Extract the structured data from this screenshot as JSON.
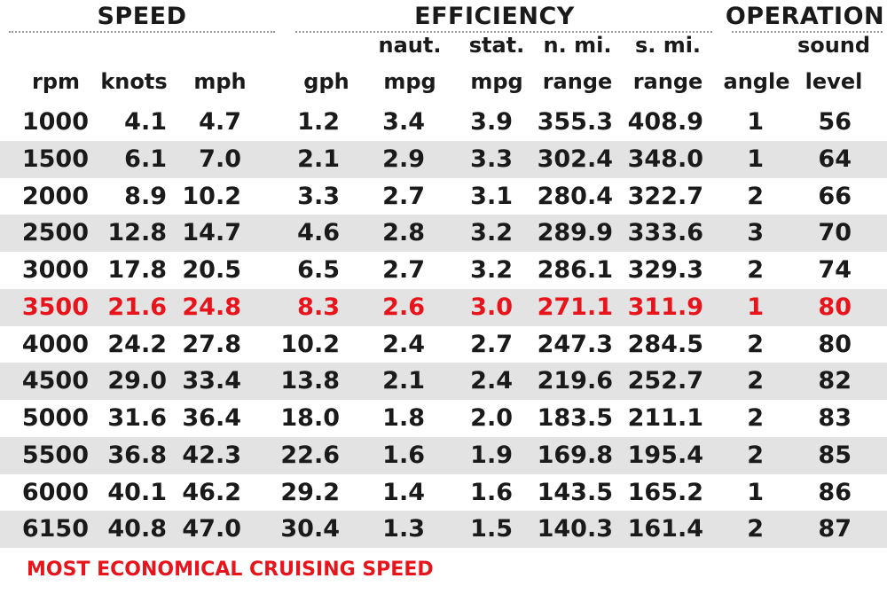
{
  "groups": {
    "speed": "SPEED",
    "efficiency": "EFFICIENCY",
    "operation": "OPERATION"
  },
  "columns": [
    {
      "key": "rpm",
      "line1": "",
      "line2": "rpm"
    },
    {
      "key": "knots",
      "line1": "",
      "line2": "knots"
    },
    {
      "key": "mph",
      "line1": "",
      "line2": "mph"
    },
    {
      "key": "gph",
      "line1": "",
      "line2": "gph"
    },
    {
      "key": "naut_mpg",
      "line1": "naut.",
      "line2": "mpg"
    },
    {
      "key": "stat_mpg",
      "line1": "stat.",
      "line2": "mpg"
    },
    {
      "key": "nmi_range",
      "line1": "n. mi.",
      "line2": "range"
    },
    {
      "key": "smi_range",
      "line1": "s. mi.",
      "line2": "range"
    },
    {
      "key": "angle",
      "line1": "",
      "line2": "angle"
    },
    {
      "key": "sound",
      "line1": "sound",
      "line2": "level"
    }
  ],
  "rows": [
    [
      "1000",
      "4.1",
      "4.7",
      "1.2",
      "3.4",
      "3.9",
      "355.3",
      "408.9",
      "1",
      "56"
    ],
    [
      "1500",
      "6.1",
      "7.0",
      "2.1",
      "2.9",
      "3.3",
      "302.4",
      "348.0",
      "1",
      "64"
    ],
    [
      "2000",
      "8.9",
      "10.2",
      "3.3",
      "2.7",
      "3.1",
      "280.4",
      "322.7",
      "2",
      "66"
    ],
    [
      "2500",
      "12.8",
      "14.7",
      "4.6",
      "2.8",
      "3.2",
      "289.9",
      "333.6",
      "3",
      "70"
    ],
    [
      "3000",
      "17.8",
      "20.5",
      "6.5",
      "2.7",
      "3.2",
      "286.1",
      "329.3",
      "2",
      "74"
    ],
    [
      "3500",
      "21.6",
      "24.8",
      "8.3",
      "2.6",
      "3.0",
      "271.1",
      "311.9",
      "1",
      "80"
    ],
    [
      "4000",
      "24.2",
      "27.8",
      "10.2",
      "2.4",
      "2.7",
      "247.3",
      "284.5",
      "2",
      "80"
    ],
    [
      "4500",
      "29.0",
      "33.4",
      "13.8",
      "2.1",
      "2.4",
      "219.6",
      "252.7",
      "2",
      "82"
    ],
    [
      "5000",
      "31.6",
      "36.4",
      "18.0",
      "1.8",
      "2.0",
      "183.5",
      "211.1",
      "2",
      "83"
    ],
    [
      "5500",
      "36.8",
      "42.3",
      "22.6",
      "1.6",
      "1.9",
      "169.8",
      "195.4",
      "2",
      "85"
    ],
    [
      "6000",
      "40.1",
      "46.2",
      "29.2",
      "1.4",
      "1.6",
      "143.5",
      "165.2",
      "1",
      "86"
    ],
    [
      "6150",
      "40.8",
      "47.0",
      "30.4",
      "1.3",
      "1.5",
      "140.3",
      "161.4",
      "2",
      "87"
    ]
  ],
  "highlight_row_index": 5,
  "legend": "MOST ECONOMICAL CRUISING SPEED",
  "colors": {
    "highlight": "#e8141b",
    "shade": "#e3e3e3",
    "text": "#1a1a1a"
  }
}
